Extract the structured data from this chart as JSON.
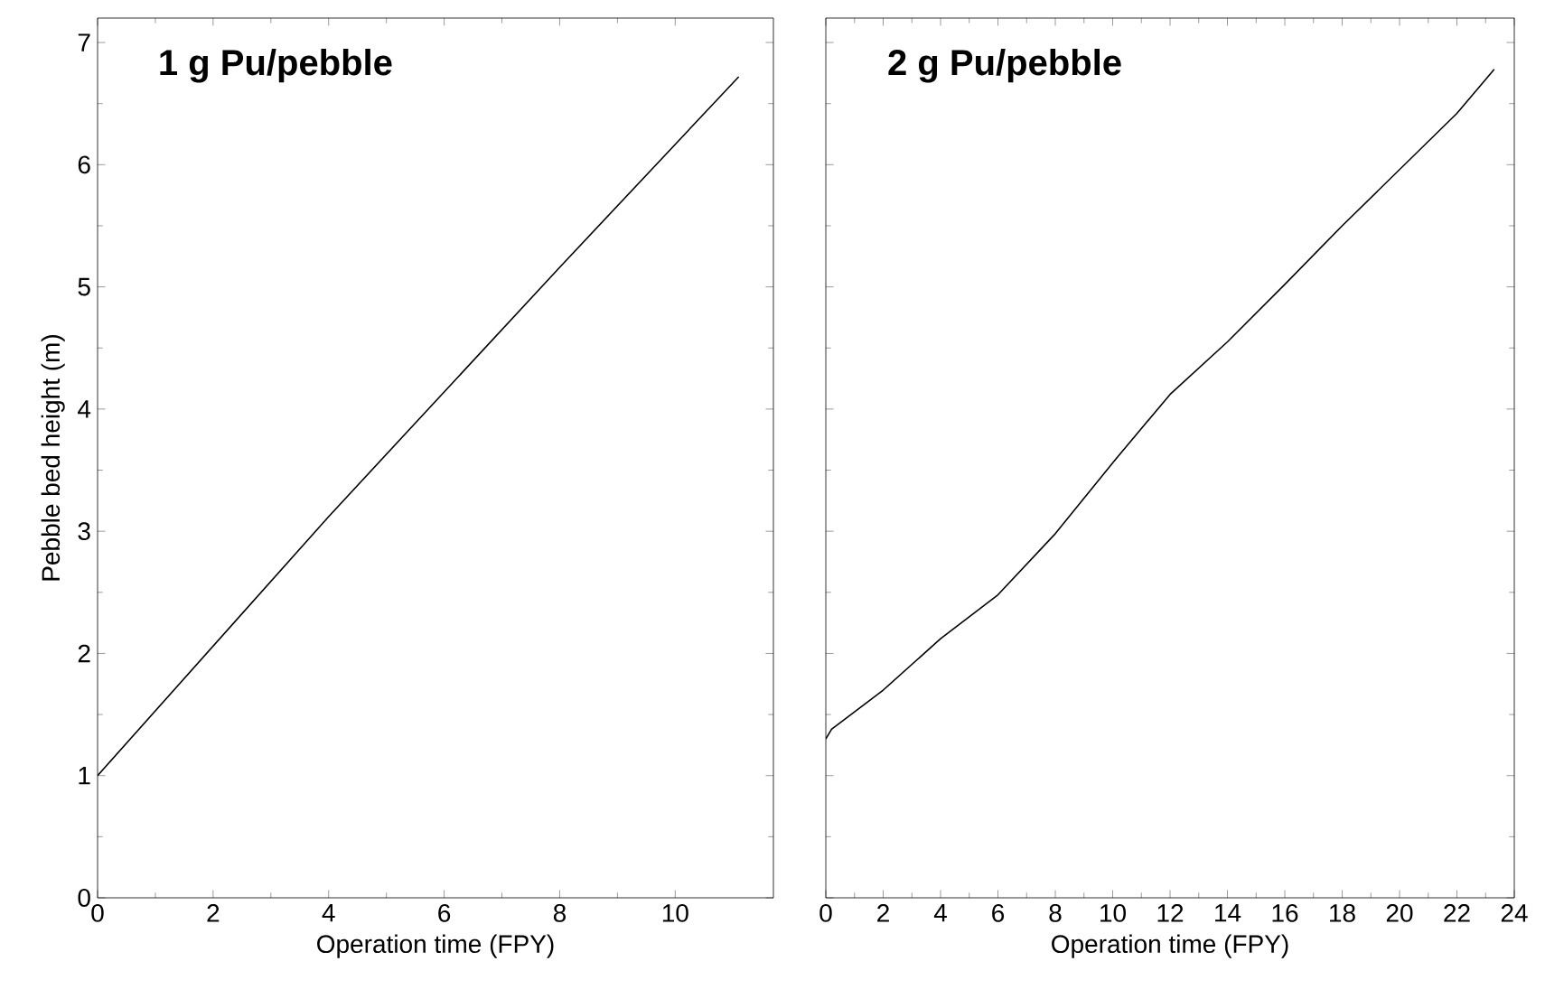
{
  "chart_data": [
    {
      "type": "line",
      "title": "1 g Pu/pebble",
      "xlabel": "Operation time (FPY)",
      "ylabel": "Pebble bed height (m)",
      "color": "#000000",
      "x": [
        0,
        4,
        8,
        11.1
      ],
      "values": [
        1.0,
        3.12,
        5.16,
        6.72
      ],
      "xlim": [
        0,
        11.7
      ],
      "ylim": [
        0,
        7.2
      ],
      "xticks": [
        0,
        2,
        4,
        6,
        8,
        10
      ],
      "yticks": [
        0,
        1,
        2,
        3,
        4,
        5,
        6,
        7
      ]
    },
    {
      "type": "line",
      "title": "2 g Pu/pebble",
      "xlabel": "Operation time (FPY)",
      "color": "#000000",
      "x": [
        0,
        0.2,
        2,
        4,
        6,
        8,
        10,
        12,
        14,
        16,
        18,
        20,
        22,
        23.3
      ],
      "values": [
        1.3,
        1.38,
        1.7,
        2.12,
        2.48,
        2.98,
        3.56,
        4.12,
        4.55,
        5.02,
        5.5,
        5.96,
        6.42,
        6.78
      ],
      "xlim": [
        0,
        24
      ],
      "ylim": [
        0,
        7.2
      ],
      "xticks": [
        0,
        2,
        4,
        6,
        8,
        10,
        12,
        14,
        16,
        18,
        20,
        22,
        24
      ],
      "yticks": [
        0,
        1,
        2,
        3,
        4,
        5,
        6,
        7
      ],
      "tick_labels": "x"
    }
  ]
}
